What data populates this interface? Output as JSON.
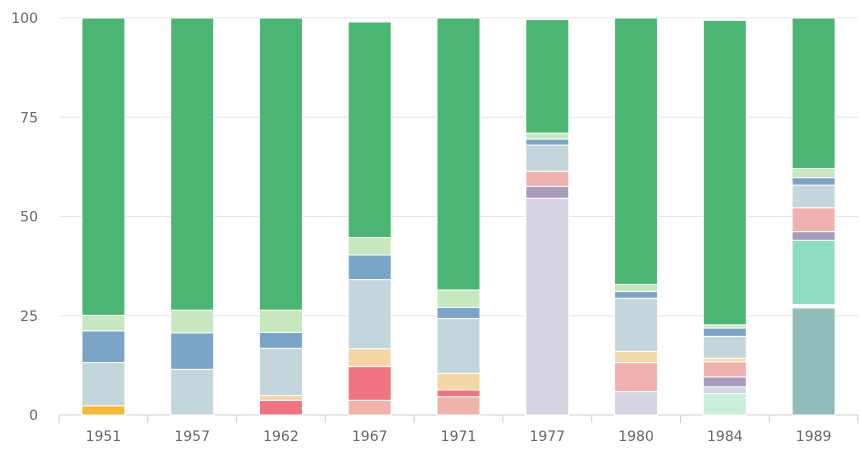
{
  "chart_data": {
    "type": "bar",
    "stacked": true,
    "categories": [
      "1951",
      "1957",
      "1962",
      "1967",
      "1971",
      "1977",
      "1980",
      "1984",
      "1989"
    ],
    "ylim": [
      0,
      100
    ],
    "yticks": [
      "0",
      "25",
      "50",
      "75",
      "100"
    ],
    "grid": true,
    "legend": "none",
    "series": [
      {
        "color": "#F5B82E",
        "values": [
          2.3,
          0,
          0,
          0,
          0,
          0,
          0,
          0,
          0
        ]
      },
      {
        "color": "#8FBDBC",
        "values": [
          0,
          0,
          0,
          0,
          0,
          0,
          0,
          0,
          27.0
        ]
      },
      {
        "color": "#C9EFD9",
        "values": [
          0,
          0,
          0,
          0,
          0,
          0,
          0,
          5.4,
          0
        ]
      },
      {
        "color": "#D6D3E3",
        "values": [
          0,
          0,
          0,
          0,
          0,
          54.6,
          5.9,
          1.7,
          0
        ]
      },
      {
        "color": "#EFB3AA",
        "values": [
          0,
          0,
          0,
          3.7,
          4.6,
          0,
          0,
          0,
          0
        ]
      },
      {
        "color": "#EF7380",
        "values": [
          0,
          0,
          3.7,
          8.5,
          1.7,
          0,
          0,
          0,
          0
        ]
      },
      {
        "color": "#F3D6A5",
        "values": [
          0,
          0,
          1.2,
          4.5,
          4.2,
          0,
          0,
          0,
          0
        ]
      },
      {
        "color": "#FFFFFF",
        "values": [
          0,
          0,
          0,
          0,
          0,
          0,
          0,
          0,
          0.8
        ]
      },
      {
        "color": "#8EDCC4",
        "values": [
          0,
          0,
          0,
          0,
          0,
          0,
          0,
          0,
          16.2
        ]
      },
      {
        "color": "#A89CBA",
        "values": [
          0,
          0,
          0,
          0,
          0,
          3.0,
          0,
          2.5,
          2.2
        ]
      },
      {
        "color": "#EFB0AE",
        "values": [
          0,
          0,
          0,
          0,
          0,
          3.8,
          7.3,
          3.8,
          6.0
        ]
      },
      {
        "color": "#F3D8A8",
        "values": [
          0,
          0,
          0,
          0,
          0,
          0,
          2.8,
          0.9,
          0
        ]
      },
      {
        "color": "#C2D6DC",
        "values": [
          10.9,
          11.5,
          11.9,
          17.4,
          13.8,
          6.6,
          13.4,
          5.5,
          5.7
        ]
      },
      {
        "color": "#7AA4C8",
        "values": [
          8.0,
          9.2,
          4.0,
          6.2,
          2.8,
          1.5,
          1.7,
          2.1,
          1.9
        ]
      },
      {
        "color": "#C6E8BC",
        "values": [
          3.9,
          5.7,
          5.6,
          4.4,
          4.4,
          1.5,
          1.8,
          0.8,
          2.3
        ]
      },
      {
        "color": "#4BB673",
        "values": [
          74.9,
          73.6,
          73.6,
          54.3,
          68.5,
          28.6,
          67.1,
          76.7,
          37.9
        ]
      }
    ]
  }
}
